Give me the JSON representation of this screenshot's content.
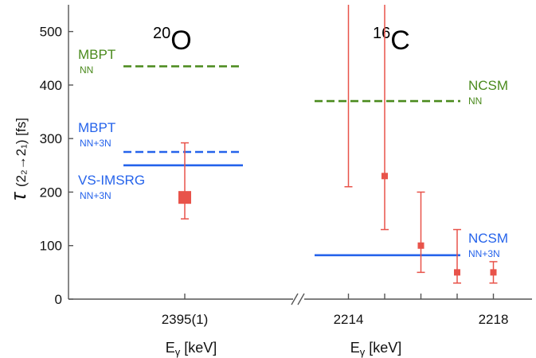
{
  "chart_data": {
    "type": "scatter",
    "ylabel": {
      "symbol": "τ",
      "sub": "(2₂→2₁) [fs]"
    },
    "ylim": [
      0,
      550
    ],
    "yticks": [
      0,
      100,
      200,
      300,
      400,
      500
    ],
    "panels": [
      {
        "id": "O20",
        "nucleus": {
          "mass": "20",
          "symbol": "O"
        },
        "xlabel": {
          "main": "E",
          "sub": "γ",
          "unit": " [keV]"
        },
        "xlim": [
          2392.5,
          2397.5
        ],
        "ticks": [
          {
            "value": 2395,
            "label": "2395(1)"
          }
        ],
        "measurements": [
          {
            "x": 2395,
            "y": 190,
            "low": 150,
            "high": 292,
            "marker": "large-square"
          }
        ],
        "predictions": [
          {
            "name": "MBPT",
            "sub": "NN",
            "value": 435,
            "style": "dashed",
            "color": "#4a8a1c"
          },
          {
            "name": "MBPT",
            "sub": "NN+3N",
            "value": 275,
            "style": "dashed",
            "color": "#2563eb"
          },
          {
            "name": "VS-IMSRG",
            "sub": "NN+3N",
            "value": 250,
            "style": "solid",
            "color": "#2563eb"
          }
        ]
      },
      {
        "id": "C16",
        "nucleus": {
          "mass": "16",
          "symbol": "C"
        },
        "xlabel": {
          "main": "E",
          "sub": "γ",
          "unit": " [keV]"
        },
        "xlim": [
          2213,
          2219
        ],
        "ticks": [
          {
            "value": 2214,
            "label": "2214"
          },
          {
            "value": 2215,
            "label": ""
          },
          {
            "value": 2216,
            "label": ""
          },
          {
            "value": 2217,
            "label": ""
          },
          {
            "value": 2218,
            "label": "2218"
          }
        ],
        "measurements": [
          {
            "x": 2214,
            "y": null,
            "low": 210,
            "high": 550,
            "marker": "none"
          },
          {
            "x": 2215,
            "y": 230,
            "low": 130,
            "high": 550,
            "marker": "square"
          },
          {
            "x": 2216,
            "y": 100,
            "low": 50,
            "high": 200,
            "marker": "square"
          },
          {
            "x": 2217,
            "y": 50,
            "low": 30,
            "high": 130,
            "marker": "square"
          },
          {
            "x": 2218,
            "y": 50,
            "low": 30,
            "high": 70,
            "marker": "square"
          }
        ],
        "predictions": [
          {
            "name": "NCSM",
            "sub": "NN",
            "value": 370,
            "style": "dashed",
            "color": "#4a8a1c"
          },
          {
            "name": "NCSM",
            "sub": "NN+3N",
            "value": 82,
            "style": "solid",
            "color": "#2563eb"
          }
        ]
      }
    ],
    "colors": {
      "measurement": "#e8534a",
      "nn": "#4a8a1c",
      "nn3n": "#2563eb"
    }
  }
}
